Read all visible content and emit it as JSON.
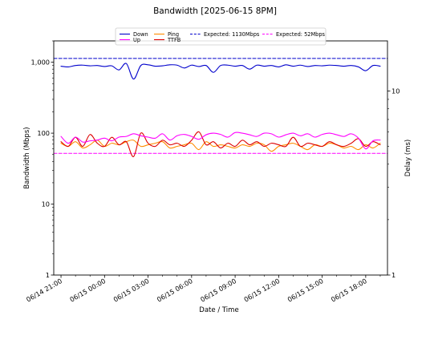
{
  "chart_data": {
    "type": "line",
    "title": "Bandwidth [2025-06-15 8PM]",
    "xlabel": "Date / Time",
    "ylabel_left": "Bandwidth (Mbps)",
    "ylabel_right": "Delay (ms)",
    "grid": false,
    "legend_position": "top-center",
    "x_ticks": [
      "06/14 21:00",
      "06/15 00:00",
      "06/15 03:00",
      "06/15 06:00",
      "06/15 09:00",
      "06/15 12:00",
      "06/15 15:00",
      "06/15 18:00"
    ],
    "x_range_hours": [
      -0.5,
      22.5
    ],
    "y_left": {
      "scale": "log",
      "range": [
        1,
        2000
      ],
      "ticks": [
        1,
        10,
        100,
        1000
      ],
      "tick_labels": [
        "1",
        "10",
        "100",
        "1,000"
      ]
    },
    "y_right": {
      "scale": "log",
      "range": [
        1,
        18.7
      ],
      "ticks": [
        1,
        10
      ],
      "tick_labels": [
        "1",
        "10"
      ]
    },
    "series": [
      {
        "name": "Down",
        "axis": "left",
        "color": "#0000cc",
        "style": "solid",
        "x": [
          0.0,
          0.5,
          1.0,
          1.5,
          2.0,
          2.5,
          3.0,
          3.5,
          4.0,
          4.5,
          5.0,
          5.5,
          6.0,
          6.5,
          7.0,
          7.5,
          8.0,
          8.5,
          9.0,
          9.5,
          10.0,
          10.5,
          11.0,
          11.5,
          12.0,
          12.5,
          13.0,
          13.5,
          14.0,
          14.5,
          15.0,
          15.5,
          16.0,
          16.5,
          17.0,
          17.5,
          18.0,
          18.5,
          19.0,
          19.5,
          20.0,
          20.5,
          21.0,
          21.5,
          22.0
        ],
        "values": [
          880,
          860,
          900,
          910,
          890,
          900,
          870,
          890,
          780,
          960,
          580,
          900,
          920,
          880,
          890,
          920,
          910,
          830,
          910,
          870,
          900,
          720,
          900,
          910,
          880,
          900,
          800,
          910,
          880,
          900,
          860,
          920,
          880,
          910,
          870,
          900,
          890,
          910,
          900,
          880,
          900,
          860,
          760,
          900,
          880
        ]
      },
      {
        "name": "Up",
        "axis": "left",
        "color": "#ff00ff",
        "style": "solid",
        "x": [
          0.0,
          0.5,
          1.0,
          1.5,
          2.0,
          2.5,
          3.0,
          3.5,
          4.0,
          4.5,
          5.0,
          5.5,
          6.0,
          6.5,
          7.0,
          7.5,
          8.0,
          8.5,
          9.0,
          9.5,
          10.0,
          10.5,
          11.0,
          11.5,
          12.0,
          12.5,
          13.0,
          13.5,
          14.0,
          14.5,
          15.0,
          15.5,
          16.0,
          16.5,
          17.0,
          17.5,
          18.0,
          18.5,
          19.0,
          19.5,
          20.0,
          20.5,
          21.0,
          21.5,
          22.0
        ],
        "values": [
          90,
          72,
          88,
          75,
          78,
          80,
          85,
          78,
          88,
          90,
          98,
          92,
          88,
          85,
          98,
          80,
          92,
          96,
          90,
          82,
          95,
          100,
          96,
          88,
          102,
          100,
          95,
          90,
          100,
          98,
          88,
          95,
          100,
          92,
          98,
          88,
          96,
          100,
          95,
          90,
          98,
          85,
          60,
          78,
          80
        ]
      },
      {
        "name": "Ping",
        "axis": "right",
        "color": "#ff8c00",
        "style": "solid",
        "x": [
          0.0,
          0.5,
          1.0,
          1.5,
          2.0,
          2.5,
          3.0,
          3.5,
          4.0,
          4.5,
          5.0,
          5.5,
          6.0,
          6.5,
          7.0,
          7.5,
          8.0,
          8.5,
          9.0,
          9.5,
          10.0,
          10.5,
          11.0,
          11.5,
          12.0,
          12.5,
          13.0,
          13.5,
          14.0,
          14.5,
          15.0,
          15.5,
          16.0,
          16.5,
          17.0,
          17.5,
          18.0,
          18.5,
          19.0,
          19.5,
          20.0,
          20.5,
          21.0,
          21.5,
          22.0
        ],
        "values": [
          5.2,
          5.0,
          5.3,
          4.9,
          5.1,
          5.4,
          5.0,
          5.2,
          5.1,
          5.3,
          5.4,
          5.0,
          5.1,
          5.2,
          5.3,
          4.9,
          5.0,
          5.1,
          5.2,
          4.8,
          5.3,
          5.0,
          5.1,
          5.0,
          4.9,
          5.1,
          5.0,
          5.2,
          5.1,
          4.7,
          5.0,
          5.1,
          5.2,
          5.0,
          4.8,
          5.1,
          5.0,
          5.2,
          5.1,
          4.9,
          5.0,
          4.8,
          5.1,
          4.9,
          5.2
        ]
      },
      {
        "name": "TTFB",
        "axis": "right",
        "color": "#dd0000",
        "style": "solid",
        "x": [
          0.0,
          0.5,
          1.0,
          1.5,
          2.0,
          2.5,
          3.0,
          3.5,
          4.0,
          4.5,
          5.0,
          5.5,
          6.0,
          6.5,
          7.0,
          7.5,
          8.0,
          8.5,
          9.0,
          9.5,
          10.0,
          10.5,
          11.0,
          11.5,
          12.0,
          12.5,
          13.0,
          13.5,
          14.0,
          14.5,
          15.0,
          15.5,
          16.0,
          16.5,
          17.0,
          17.5,
          18.0,
          18.5,
          19.0,
          19.5,
          20.0,
          20.5,
          21.0,
          21.5,
          22.0
        ],
        "values": [
          5.3,
          5.0,
          5.6,
          5.0,
          5.8,
          5.2,
          5.0,
          5.6,
          5.1,
          5.3,
          4.4,
          5.9,
          5.2,
          5.0,
          5.4,
          5.1,
          5.2,
          5.0,
          5.4,
          6.0,
          5.1,
          5.3,
          4.9,
          5.2,
          5.0,
          5.4,
          5.1,
          5.3,
          5.0,
          5.2,
          5.1,
          5.0,
          5.6,
          5.0,
          5.2,
          5.1,
          5.0,
          5.3,
          5.1,
          5.0,
          5.2,
          5.5,
          5.0,
          5.3,
          5.1
        ]
      },
      {
        "name": "Expected: 1130Mbps",
        "axis": "left",
        "color": "#0000cc",
        "style": "dashed",
        "x": [
          -0.5,
          22.5
        ],
        "values": [
          1130,
          1130
        ]
      },
      {
        "name": "Expected: 52Mbps",
        "axis": "left",
        "color": "#ff00ff",
        "style": "dashed",
        "x": [
          -0.5,
          22.5
        ],
        "values": [
          52,
          52
        ]
      }
    ],
    "legend": [
      {
        "name": "Down",
        "color": "#0000cc",
        "style": "solid"
      },
      {
        "name": "Up",
        "color": "#ff00ff",
        "style": "solid"
      },
      {
        "name": "Ping",
        "color": "#ff8c00",
        "style": "solid"
      },
      {
        "name": "TTFB",
        "color": "#dd0000",
        "style": "solid"
      },
      {
        "name": "Expected: 1130Mbps",
        "color": "#0000cc",
        "style": "dashed"
      },
      {
        "name": "Expected: 52Mbps",
        "color": "#ff00ff",
        "style": "dashed"
      }
    ]
  }
}
